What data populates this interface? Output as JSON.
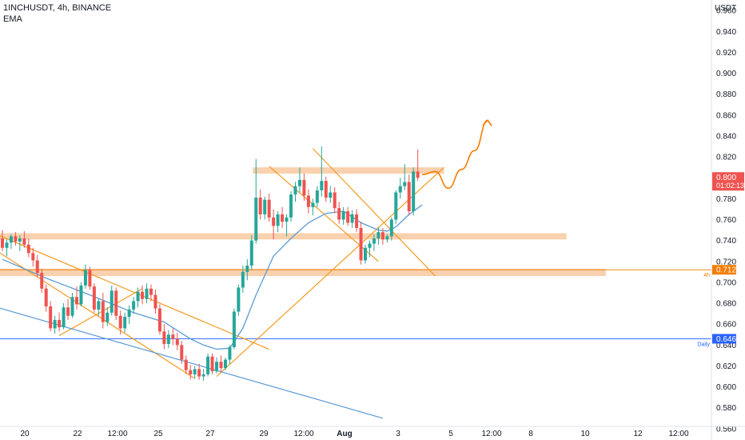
{
  "header": {
    "symbol_line": "1INCHUSDT, 4h, BINANCE",
    "indicator": "EMA"
  },
  "price_axis": {
    "currency": "USDT",
    "ticks": [
      "0.960",
      "0.940",
      "0.920",
      "0.900",
      "0.880",
      "0.860",
      "0.840",
      "0.820",
      "0.800",
      "0.780",
      "0.760",
      "0.740",
      "0.720",
      "0.700",
      "0.680",
      "0.660",
      "0.640",
      "0.620",
      "0.600",
      "0.580",
      "0.560"
    ],
    "current_price": "0.800",
    "countdown": "01:02:13"
  },
  "time_axis": {
    "ticks": [
      "20",
      "22",
      "12:00",
      "25",
      "27",
      "29",
      "12:00",
      "Aug",
      "3",
      "5",
      "12:00",
      "8",
      "10",
      "12",
      "12:00"
    ]
  },
  "levels": [
    {
      "label": "0.712",
      "tag": "4h",
      "value": 0.712,
      "color": "#f57c00"
    },
    {
      "label": "0.646",
      "tag": "Daily",
      "value": 0.646,
      "color": "#2962ff"
    }
  ],
  "colors": {
    "up": "#26a69a",
    "down": "#ef5350",
    "ema": "#5b9bd5",
    "zone": "#f8c9a0",
    "trend": "#f59a23",
    "projection": "#f57c00"
  },
  "chart_data": {
    "type": "candlestick",
    "symbol": "1INCHUSDT",
    "timeframe": "4h",
    "exchange": "BINANCE",
    "y_range": [
      0.553,
      0.967
    ],
    "candles": [
      [
        0.742,
        0.75,
        0.73,
        0.733
      ],
      [
        0.733,
        0.741,
        0.725,
        0.738
      ],
      [
        0.738,
        0.746,
        0.732,
        0.744
      ],
      [
        0.744,
        0.748,
        0.735,
        0.739
      ],
      [
        0.739,
        0.745,
        0.73,
        0.742
      ],
      [
        0.742,
        0.749,
        0.733,
        0.736
      ],
      [
        0.736,
        0.742,
        0.724,
        0.728
      ],
      [
        0.728,
        0.733,
        0.715,
        0.721
      ],
      [
        0.721,
        0.726,
        0.705,
        0.709
      ],
      [
        0.709,
        0.713,
        0.69,
        0.694
      ],
      [
        0.694,
        0.698,
        0.672,
        0.677
      ],
      [
        0.677,
        0.682,
        0.653,
        0.656
      ],
      [
        0.656,
        0.668,
        0.651,
        0.664
      ],
      [
        0.664,
        0.671,
        0.653,
        0.657
      ],
      [
        0.657,
        0.68,
        0.655,
        0.676
      ],
      [
        0.676,
        0.684,
        0.664,
        0.668
      ],
      [
        0.668,
        0.69,
        0.666,
        0.686
      ],
      [
        0.686,
        0.696,
        0.674,
        0.679
      ],
      [
        0.679,
        0.7,
        0.677,
        0.697
      ],
      [
        0.697,
        0.717,
        0.694,
        0.712
      ],
      [
        0.712,
        0.715,
        0.693,
        0.696
      ],
      [
        0.696,
        0.699,
        0.671,
        0.674
      ],
      [
        0.674,
        0.685,
        0.668,
        0.682
      ],
      [
        0.682,
        0.69,
        0.656,
        0.662
      ],
      [
        0.662,
        0.676,
        0.658,
        0.671
      ],
      [
        0.671,
        0.697,
        0.668,
        0.692
      ],
      [
        0.692,
        0.695,
        0.664,
        0.668
      ],
      [
        0.668,
        0.673,
        0.65,
        0.656
      ],
      [
        0.656,
        0.671,
        0.652,
        0.667
      ],
      [
        0.667,
        0.678,
        0.66,
        0.674
      ],
      [
        0.674,
        0.686,
        0.67,
        0.682
      ],
      [
        0.682,
        0.695,
        0.676,
        0.691
      ],
      [
        0.691,
        0.697,
        0.679,
        0.684
      ],
      [
        0.684,
        0.699,
        0.68,
        0.694
      ],
      [
        0.694,
        0.698,
        0.682,
        0.688
      ],
      [
        0.688,
        0.693,
        0.67,
        0.675
      ],
      [
        0.675,
        0.679,
        0.65,
        0.653
      ],
      [
        0.653,
        0.66,
        0.636,
        0.641
      ],
      [
        0.641,
        0.654,
        0.637,
        0.65
      ],
      [
        0.65,
        0.656,
        0.64,
        0.646
      ],
      [
        0.646,
        0.652,
        0.635,
        0.64
      ],
      [
        0.64,
        0.644,
        0.622,
        0.626
      ],
      [
        0.626,
        0.63,
        0.612,
        0.616
      ],
      [
        0.616,
        0.621,
        0.607,
        0.612
      ],
      [
        0.612,
        0.62,
        0.608,
        0.617
      ],
      [
        0.617,
        0.622,
        0.607,
        0.61
      ],
      [
        0.61,
        0.617,
        0.606,
        0.612
      ],
      [
        0.612,
        0.632,
        0.61,
        0.629
      ],
      [
        0.629,
        0.632,
        0.612,
        0.615
      ],
      [
        0.615,
        0.628,
        0.613,
        0.624
      ],
      [
        0.624,
        0.63,
        0.614,
        0.618
      ],
      [
        0.618,
        0.628,
        0.616,
        0.626
      ],
      [
        0.626,
        0.64,
        0.622,
        0.638
      ],
      [
        0.638,
        0.675,
        0.636,
        0.672
      ],
      [
        0.672,
        0.698,
        0.668,
        0.695
      ],
      [
        0.695,
        0.716,
        0.69,
        0.71
      ],
      [
        0.71,
        0.722,
        0.702,
        0.716
      ],
      [
        0.716,
        0.745,
        0.712,
        0.74
      ],
      [
        0.74,
        0.818,
        0.737,
        0.781
      ],
      [
        0.781,
        0.789,
        0.76,
        0.765
      ],
      [
        0.765,
        0.782,
        0.76,
        0.779
      ],
      [
        0.779,
        0.785,
        0.758,
        0.762
      ],
      [
        0.762,
        0.77,
        0.741,
        0.754
      ],
      [
        0.754,
        0.768,
        0.748,
        0.765
      ],
      [
        0.765,
        0.772,
        0.752,
        0.758
      ],
      [
        0.758,
        0.765,
        0.744,
        0.762
      ],
      [
        0.762,
        0.787,
        0.758,
        0.784
      ],
      [
        0.784,
        0.796,
        0.777,
        0.792
      ],
      [
        0.792,
        0.81,
        0.786,
        0.798
      ],
      [
        0.798,
        0.804,
        0.778,
        0.783
      ],
      [
        0.783,
        0.789,
        0.766,
        0.772
      ],
      [
        0.772,
        0.78,
        0.764,
        0.776
      ],
      [
        0.776,
        0.792,
        0.772,
        0.788
      ],
      [
        0.788,
        0.83,
        0.782,
        0.797
      ],
      [
        0.797,
        0.801,
        0.777,
        0.781
      ],
      [
        0.781,
        0.792,
        0.776,
        0.786
      ],
      [
        0.786,
        0.791,
        0.766,
        0.771
      ],
      [
        0.771,
        0.777,
        0.756,
        0.76
      ],
      [
        0.76,
        0.772,
        0.755,
        0.768
      ],
      [
        0.768,
        0.772,
        0.754,
        0.757
      ],
      [
        0.757,
        0.769,
        0.752,
        0.765
      ],
      [
        0.765,
        0.77,
        0.748,
        0.752
      ],
      [
        0.752,
        0.758,
        0.717,
        0.721
      ],
      [
        0.721,
        0.736,
        0.718,
        0.733
      ],
      [
        0.733,
        0.74,
        0.724,
        0.737
      ],
      [
        0.737,
        0.746,
        0.73,
        0.742
      ],
      [
        0.742,
        0.753,
        0.736,
        0.748
      ],
      [
        0.748,
        0.752,
        0.736,
        0.741
      ],
      [
        0.741,
        0.746,
        0.738,
        0.744
      ],
      [
        0.744,
        0.762,
        0.74,
        0.76
      ],
      [
        0.76,
        0.788,
        0.756,
        0.786
      ],
      [
        0.786,
        0.8,
        0.78,
        0.792
      ],
      [
        0.792,
        0.813,
        0.788,
        0.796
      ],
      [
        0.796,
        0.803,
        0.764,
        0.768
      ],
      [
        0.768,
        0.81,
        0.764,
        0.806
      ],
      [
        0.806,
        0.827,
        0.797,
        0.8
      ]
    ],
    "ema": [
      [
        0,
        0.722
      ],
      [
        10,
        0.704
      ],
      [
        20,
        0.688
      ],
      [
        30,
        0.671
      ],
      [
        37,
        0.662
      ],
      [
        43,
        0.646
      ],
      [
        46,
        0.64
      ],
      [
        49,
        0.636
      ],
      [
        52,
        0.637
      ],
      [
        55,
        0.656
      ],
      [
        58,
        0.688
      ],
      [
        62,
        0.725
      ],
      [
        66,
        0.742
      ],
      [
        70,
        0.757
      ],
      [
        74,
        0.766
      ],
      [
        78,
        0.768
      ],
      [
        82,
        0.757
      ],
      [
        86,
        0.75
      ],
      [
        88,
        0.749
      ],
      [
        90,
        0.753
      ],
      [
        93,
        0.765
      ],
      [
        96,
        0.774
      ]
    ],
    "zones": [
      {
        "x_start": 58,
        "x_end": 101,
        "low": 0.804,
        "high": 0.81
      },
      {
        "x_start": 0,
        "x_end": 129,
        "low": 0.741,
        "high": 0.747
      },
      {
        "x_start": 0,
        "x_end": 138,
        "low": 0.706,
        "high": 0.713
      }
    ],
    "horizontal_lines": [
      {
        "value": 0.712,
        "label": "4h",
        "x_start": 0
      },
      {
        "value": 0.646,
        "label": "Daily",
        "x_start": 0
      }
    ],
    "trendlines": [
      {
        "color": "orange",
        "points": [
          [
            -2,
            0.747
          ],
          [
            61,
            0.636
          ]
        ]
      },
      {
        "color": "orange",
        "points": [
          [
            -2,
            0.732
          ],
          [
            44,
            0.608
          ]
        ]
      },
      {
        "color": "orange",
        "points": [
          [
            13,
            0.649
          ],
          [
            32,
            0.694
          ]
        ]
      },
      {
        "color": "orange",
        "points": [
          [
            49,
            0.61
          ],
          [
            101,
            0.81
          ]
        ]
      },
      {
        "color": "orange",
        "points": [
          [
            61,
            0.811
          ],
          [
            86,
            0.72
          ]
        ]
      },
      {
        "color": "orange",
        "points": [
          [
            71,
            0.828
          ],
          [
            99,
            0.706
          ]
        ]
      },
      {
        "color": "blue",
        "points": [
          [
            -2,
            0.677
          ],
          [
            87,
            0.57
          ]
        ]
      }
    ],
    "projection": [
      [
        96,
        0.803
      ],
      [
        99,
        0.806
      ],
      [
        102,
        0.79
      ],
      [
        105,
        0.808
      ],
      [
        108,
        0.826
      ],
      [
        111,
        0.855
      ]
    ]
  }
}
